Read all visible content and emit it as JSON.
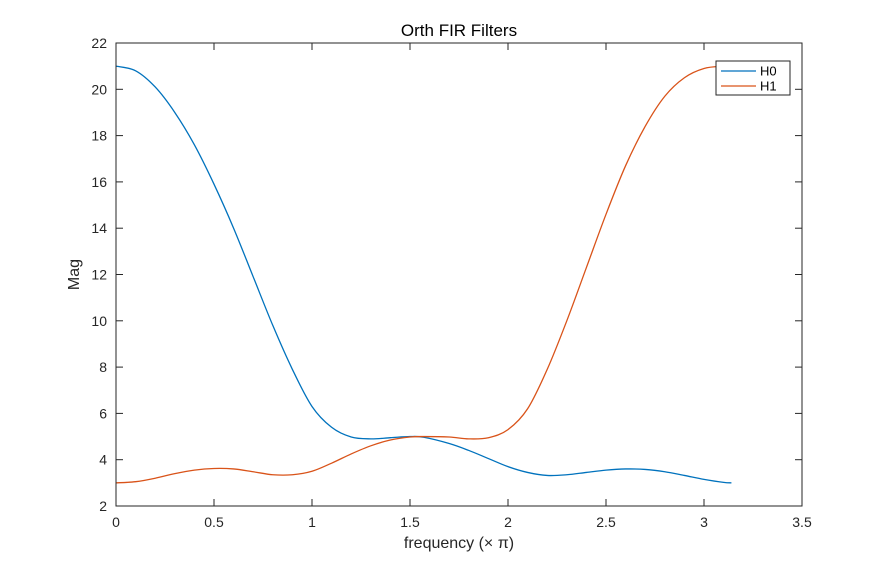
{
  "chart_data": {
    "type": "line",
    "title": "Orth FIR Filters",
    "xlabel": "frequency (× π)",
    "ylabel": "Mag",
    "xlim": [
      0,
      3.5
    ],
    "ylim": [
      2,
      22
    ],
    "xticks": [
      "0",
      "0.5",
      "1",
      "1.5",
      "2",
      "2.5",
      "3",
      "3.5"
    ],
    "yticks": [
      "2",
      "4",
      "6",
      "8",
      "10",
      "12",
      "14",
      "16",
      "18",
      "20",
      "22"
    ],
    "grid": false,
    "legend_position": "top-right",
    "series": [
      {
        "name": "H0",
        "color": "#0072BD",
        "x": [
          0,
          0.1,
          0.2,
          0.3,
          0.4,
          0.5,
          0.6,
          0.7,
          0.8,
          0.9,
          1.0,
          1.1,
          1.2,
          1.3,
          1.4,
          1.5,
          1.57,
          1.7,
          1.8,
          1.9,
          2.0,
          2.1,
          2.2,
          2.3,
          2.4,
          2.5,
          2.6,
          2.7,
          2.8,
          2.9,
          3.0,
          3.1,
          3.14
        ],
        "values": [
          21.0,
          20.8,
          20.1,
          19.0,
          17.6,
          15.9,
          14.0,
          11.9,
          9.8,
          7.9,
          6.3,
          5.4,
          4.98,
          4.9,
          4.95,
          5.0,
          4.97,
          4.7,
          4.4,
          4.05,
          3.7,
          3.45,
          3.32,
          3.35,
          3.45,
          3.55,
          3.6,
          3.58,
          3.48,
          3.32,
          3.15,
          3.02,
          3.0
        ]
      },
      {
        "name": "H1",
        "color": "#D95319",
        "x": [
          0,
          0.1,
          0.2,
          0.3,
          0.4,
          0.5,
          0.6,
          0.7,
          0.8,
          0.9,
          1.0,
          1.1,
          1.2,
          1.3,
          1.4,
          1.5,
          1.57,
          1.7,
          1.8,
          1.9,
          2.0,
          2.1,
          2.2,
          2.3,
          2.4,
          2.5,
          2.6,
          2.7,
          2.8,
          2.9,
          3.0,
          3.1,
          3.14
        ],
        "values": [
          3.0,
          3.05,
          3.2,
          3.4,
          3.55,
          3.62,
          3.6,
          3.48,
          3.35,
          3.35,
          3.5,
          3.85,
          4.25,
          4.6,
          4.85,
          4.98,
          5.0,
          4.98,
          4.9,
          4.95,
          5.3,
          6.2,
          7.9,
          10.0,
          12.3,
          14.6,
          16.7,
          18.4,
          19.7,
          20.5,
          20.9,
          21.0,
          21.0
        ]
      }
    ]
  }
}
